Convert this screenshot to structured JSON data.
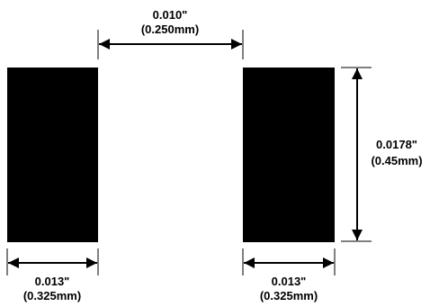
{
  "colors": {
    "pad": "#000000",
    "line": "#000000",
    "background": "#ffffff"
  },
  "pads": [
    {
      "name": "left-pad"
    },
    {
      "name": "right-pad"
    }
  ],
  "dimensions": {
    "gap": {
      "inch": "0.010\"",
      "mm": "(0.250mm)"
    },
    "height": {
      "inch": "0.0178\"",
      "mm": "(0.45mm)"
    },
    "left_width": {
      "inch": "0.013\"",
      "mm": "(0.325mm)"
    },
    "right_width": {
      "inch": "0.013\"",
      "mm": "(0.325mm)"
    }
  }
}
